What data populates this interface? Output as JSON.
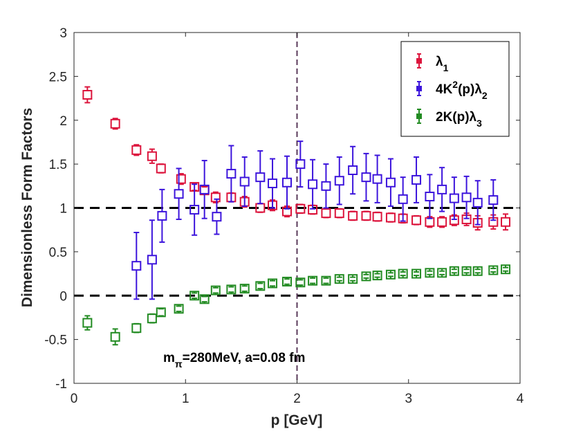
{
  "chart_data": {
    "type": "scatter",
    "title": "",
    "xlabel": "p [GeV]",
    "ylabel": "Dimensionless Form Factors",
    "xlim": [
      0,
      4
    ],
    "ylim": [
      -1,
      3
    ],
    "xticks": [
      "0",
      "1",
      "2",
      "3",
      "4"
    ],
    "yticks": [
      "-1",
      "-0.5",
      "0",
      "0.5",
      "1",
      "1.5",
      "2",
      "2.5",
      "3"
    ],
    "grid": false,
    "legend_position": "top-right",
    "reference_lines": [
      {
        "orientation": "horizontal",
        "value": 1,
        "style": "dashed",
        "color": "#000000"
      },
      {
        "orientation": "horizontal",
        "value": 0,
        "style": "dashed",
        "color": "#000000"
      },
      {
        "orientation": "vertical",
        "value": 2,
        "style": "dashed",
        "color": "#5a3a5a"
      }
    ],
    "annotation": {
      "prefix": "m",
      "subscript": "π",
      "text": "=280MeV,    a=0.08 fm"
    },
    "series": [
      {
        "name": "λ1",
        "legend_main": "λ",
        "legend_sub": "1",
        "legend_sup": "",
        "legend_after": "",
        "color": "#dc143c",
        "points": [
          {
            "x": 0.12,
            "y": 2.29,
            "err": 0.09
          },
          {
            "x": 0.37,
            "y": 1.96,
            "err": 0.06
          },
          {
            "x": 0.56,
            "y": 1.66,
            "err": 0.06
          },
          {
            "x": 0.7,
            "y": 1.59,
            "err": 0.08
          },
          {
            "x": 0.78,
            "y": 1.45,
            "err": 0.05
          },
          {
            "x": 0.96,
            "y": 1.33,
            "err": 0.06
          },
          {
            "x": 1.08,
            "y": 1.24,
            "err": 0.04
          },
          {
            "x": 1.17,
            "y": 1.2,
            "err": 0.04
          },
          {
            "x": 1.27,
            "y": 1.12,
            "err": 0.06
          },
          {
            "x": 1.41,
            "y": 1.12,
            "err": 0.05
          },
          {
            "x": 1.53,
            "y": 1.07,
            "err": 0.06
          },
          {
            "x": 1.67,
            "y": 1.0,
            "err": 0.05
          },
          {
            "x": 1.78,
            "y": 1.03,
            "err": 0.06
          },
          {
            "x": 1.91,
            "y": 0.96,
            "err": 0.06
          },
          {
            "x": 2.03,
            "y": 0.99,
            "err": 0.05
          },
          {
            "x": 2.14,
            "y": 0.98,
            "err": 0.05
          },
          {
            "x": 2.26,
            "y": 0.94,
            "err": 0.05
          },
          {
            "x": 2.38,
            "y": 0.94,
            "err": 0.05
          },
          {
            "x": 2.5,
            "y": 0.91,
            "err": 0.05
          },
          {
            "x": 2.62,
            "y": 0.91,
            "err": 0.05
          },
          {
            "x": 2.72,
            "y": 0.9,
            "err": 0.05
          },
          {
            "x": 2.84,
            "y": 0.89,
            "err": 0.05
          },
          {
            "x": 2.95,
            "y": 0.88,
            "err": 0.05
          },
          {
            "x": 3.07,
            "y": 0.86,
            "err": 0.05
          },
          {
            "x": 3.19,
            "y": 0.84,
            "err": 0.06
          },
          {
            "x": 3.3,
            "y": 0.84,
            "err": 0.06
          },
          {
            "x": 3.41,
            "y": 0.86,
            "err": 0.06
          },
          {
            "x": 3.52,
            "y": 0.87,
            "err": 0.07
          },
          {
            "x": 3.62,
            "y": 0.83,
            "err": 0.08
          },
          {
            "x": 3.76,
            "y": 0.84,
            "err": 0.08
          },
          {
            "x": 3.87,
            "y": 0.84,
            "err": 0.09
          }
        ]
      },
      {
        "name": "4K2(p)λ2",
        "legend_main": "4K",
        "legend_sub": "",
        "legend_sup": "2",
        "legend_after": "(p)λ",
        "legend_after_sub": "2",
        "color": "#3c14dc",
        "points": [
          {
            "x": 0.56,
            "y": 0.34,
            "err": 0.38
          },
          {
            "x": 0.7,
            "y": 0.41,
            "err": 0.45
          },
          {
            "x": 0.79,
            "y": 0.91,
            "err": 0.3
          },
          {
            "x": 0.94,
            "y": 1.16,
            "err": 0.29
          },
          {
            "x": 1.08,
            "y": 0.98,
            "err": 0.29
          },
          {
            "x": 1.17,
            "y": 1.21,
            "err": 0.33
          },
          {
            "x": 1.28,
            "y": 0.9,
            "err": 0.2
          },
          {
            "x": 1.41,
            "y": 1.39,
            "err": 0.32
          },
          {
            "x": 1.53,
            "y": 1.3,
            "err": 0.28
          },
          {
            "x": 1.67,
            "y": 1.35,
            "err": 0.3
          },
          {
            "x": 1.78,
            "y": 1.28,
            "err": 0.28
          },
          {
            "x": 1.91,
            "y": 1.29,
            "err": 0.3
          },
          {
            "x": 2.03,
            "y": 1.5,
            "err": 0.26
          },
          {
            "x": 2.14,
            "y": 1.27,
            "err": 0.28
          },
          {
            "x": 2.26,
            "y": 1.25,
            "err": 0.25
          },
          {
            "x": 2.38,
            "y": 1.31,
            "err": 0.27
          },
          {
            "x": 2.5,
            "y": 1.43,
            "err": 0.27
          },
          {
            "x": 2.62,
            "y": 1.35,
            "err": 0.27
          },
          {
            "x": 2.72,
            "y": 1.33,
            "err": 0.27
          },
          {
            "x": 2.84,
            "y": 1.29,
            "err": 0.27
          },
          {
            "x": 2.95,
            "y": 1.1,
            "err": 0.25
          },
          {
            "x": 3.07,
            "y": 1.32,
            "err": 0.26
          },
          {
            "x": 3.19,
            "y": 1.13,
            "err": 0.25
          },
          {
            "x": 3.3,
            "y": 1.21,
            "err": 0.25
          },
          {
            "x": 3.41,
            "y": 1.11,
            "err": 0.24
          },
          {
            "x": 3.52,
            "y": 1.12,
            "err": 0.24
          },
          {
            "x": 3.62,
            "y": 1.06,
            "err": 0.25
          },
          {
            "x": 3.76,
            "y": 1.09,
            "err": 0.23
          }
        ]
      },
      {
        "name": "2K(p)λ3",
        "legend_main": "2K(p)λ",
        "legend_sub": "3",
        "legend_sup": "",
        "legend_after": "",
        "color": "#228b22",
        "points": [
          {
            "x": 0.12,
            "y": -0.31,
            "err": 0.08
          },
          {
            "x": 0.37,
            "y": -0.47,
            "err": 0.09
          },
          {
            "x": 0.56,
            "y": -0.37,
            "err": 0.05
          },
          {
            "x": 0.7,
            "y": -0.26,
            "err": 0.05
          },
          {
            "x": 0.78,
            "y": -0.19,
            "err": 0.04
          },
          {
            "x": 0.94,
            "y": -0.15,
            "err": 0.03
          },
          {
            "x": 1.08,
            "y": 0.0,
            "err": 0.03
          },
          {
            "x": 1.17,
            "y": -0.04,
            "err": 0.03
          },
          {
            "x": 1.27,
            "y": 0.06,
            "err": 0.03
          },
          {
            "x": 1.41,
            "y": 0.07,
            "err": 0.03
          },
          {
            "x": 1.53,
            "y": 0.08,
            "err": 0.03
          },
          {
            "x": 1.67,
            "y": 0.11,
            "err": 0.03
          },
          {
            "x": 1.78,
            "y": 0.14,
            "err": 0.03
          },
          {
            "x": 1.91,
            "y": 0.16,
            "err": 0.03
          },
          {
            "x": 2.03,
            "y": 0.15,
            "err": 0.03
          },
          {
            "x": 2.14,
            "y": 0.17,
            "err": 0.03
          },
          {
            "x": 2.26,
            "y": 0.17,
            "err": 0.03
          },
          {
            "x": 2.38,
            "y": 0.19,
            "err": 0.02
          },
          {
            "x": 2.5,
            "y": 0.19,
            "err": 0.02
          },
          {
            "x": 2.62,
            "y": 0.22,
            "err": 0.02
          },
          {
            "x": 2.72,
            "y": 0.23,
            "err": 0.02
          },
          {
            "x": 2.84,
            "y": 0.24,
            "err": 0.02
          },
          {
            "x": 2.95,
            "y": 0.25,
            "err": 0.02
          },
          {
            "x": 3.07,
            "y": 0.25,
            "err": 0.02
          },
          {
            "x": 3.19,
            "y": 0.26,
            "err": 0.02
          },
          {
            "x": 3.3,
            "y": 0.26,
            "err": 0.02
          },
          {
            "x": 3.41,
            "y": 0.28,
            "err": 0.02
          },
          {
            "x": 3.52,
            "y": 0.28,
            "err": 0.02
          },
          {
            "x": 3.62,
            "y": 0.28,
            "err": 0.02
          },
          {
            "x": 3.76,
            "y": 0.29,
            "err": 0.02
          },
          {
            "x": 3.87,
            "y": 0.3,
            "err": 0.02
          }
        ]
      }
    ]
  }
}
